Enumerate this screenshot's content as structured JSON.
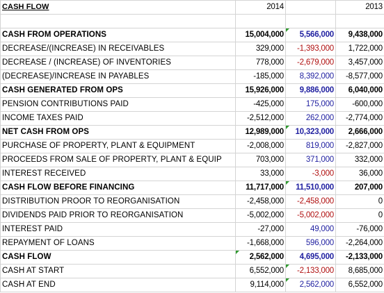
{
  "sheet": {
    "title": "CASH FLOW",
    "year_a": "2014",
    "year_b": "",
    "year_c": "2013",
    "colors": {
      "positive_calc": "#1f1fa0",
      "negative_calc": "#b01010",
      "comment_marker": "#2e9a2e",
      "gridline": "#d4d4d4"
    },
    "rows": [
      {
        "label": "",
        "a": "",
        "b": "",
        "c": ""
      },
      {
        "label": "CASH FROM OPERATIONS",
        "a": "15,004,000",
        "b": "5,566,000",
        "c": "9,438,000"
      },
      {
        "label": "DECREASE/(INCREASE) IN RECEIVABLES",
        "a": "329,000",
        "b": "-1,393,000",
        "c": "1,722,000"
      },
      {
        "label": "DECREASE / (INCREASE) OF INVENTORIES",
        "a": "778,000",
        "b": "-2,679,000",
        "c": "3,457,000"
      },
      {
        "label": "(DECREASE)/INCREASE IN PAYABLES",
        "a": "-185,000",
        "b": "8,392,000",
        "c": "-8,577,000"
      },
      {
        "label": "CASH GENERATED FROM OPS",
        "a": "15,926,000",
        "b": "9,886,000",
        "c": "6,040,000"
      },
      {
        "label": "PENSION CONTRIBUTIONS PAID",
        "a": "-425,000",
        "b": "175,000",
        "c": "-600,000"
      },
      {
        "label": "INCOME TAXES PAID",
        "a": "-2,512,000",
        "b": "262,000",
        "c": "-2,774,000"
      },
      {
        "label": "NET CASH FROM OPS",
        "a": "12,989,000",
        "b": "10,323,000",
        "c": "2,666,000"
      },
      {
        "label": "PURCHASE OF PROPERTY, PLANT & EQUIPMENT",
        "a": "-2,008,000",
        "b": "819,000",
        "c": "-2,827,000"
      },
      {
        "label": "PROCEEDS FROM SALE OF PROPERTY, PLANT & EQUIP",
        "a": "703,000",
        "b": "371,000",
        "c": "332,000"
      },
      {
        "label": "INTEREST RECEIVED",
        "a": "33,000",
        "b": "-3,000",
        "c": "36,000"
      },
      {
        "label": "CASH FLOW BEFORE FINANCING",
        "a": "11,717,000",
        "b": "11,510,000",
        "c": "207,000"
      },
      {
        "label": "DISTRIBUTION PROOR TO REORGANISATION",
        "a": "-2,458,000",
        "b": "-2,458,000",
        "c": "0"
      },
      {
        "label": "DIVIDENDS PAID PRIOR TO REORGANISATION",
        "a": "-5,002,000",
        "b": "-5,002,000",
        "c": "0"
      },
      {
        "label": "INTEREST PAID",
        "a": "-27,000",
        "b": "49,000",
        "c": "-76,000"
      },
      {
        "label": "REPAYMENT OF LOANS",
        "a": "-1,668,000",
        "b": "596,000",
        "c": "-2,264,000"
      },
      {
        "label": "CASH FLOW",
        "a": "2,562,000",
        "b": "4,695,000",
        "c": "-2,133,000"
      },
      {
        "label": "CASH AT START",
        "a": "6,552,000",
        "b": "-2,133,000",
        "c": "8,685,000"
      },
      {
        "label": "CASH AT END",
        "a": "9,114,000",
        "b": "2,562,000",
        "c": "6,552,000"
      }
    ]
  }
}
